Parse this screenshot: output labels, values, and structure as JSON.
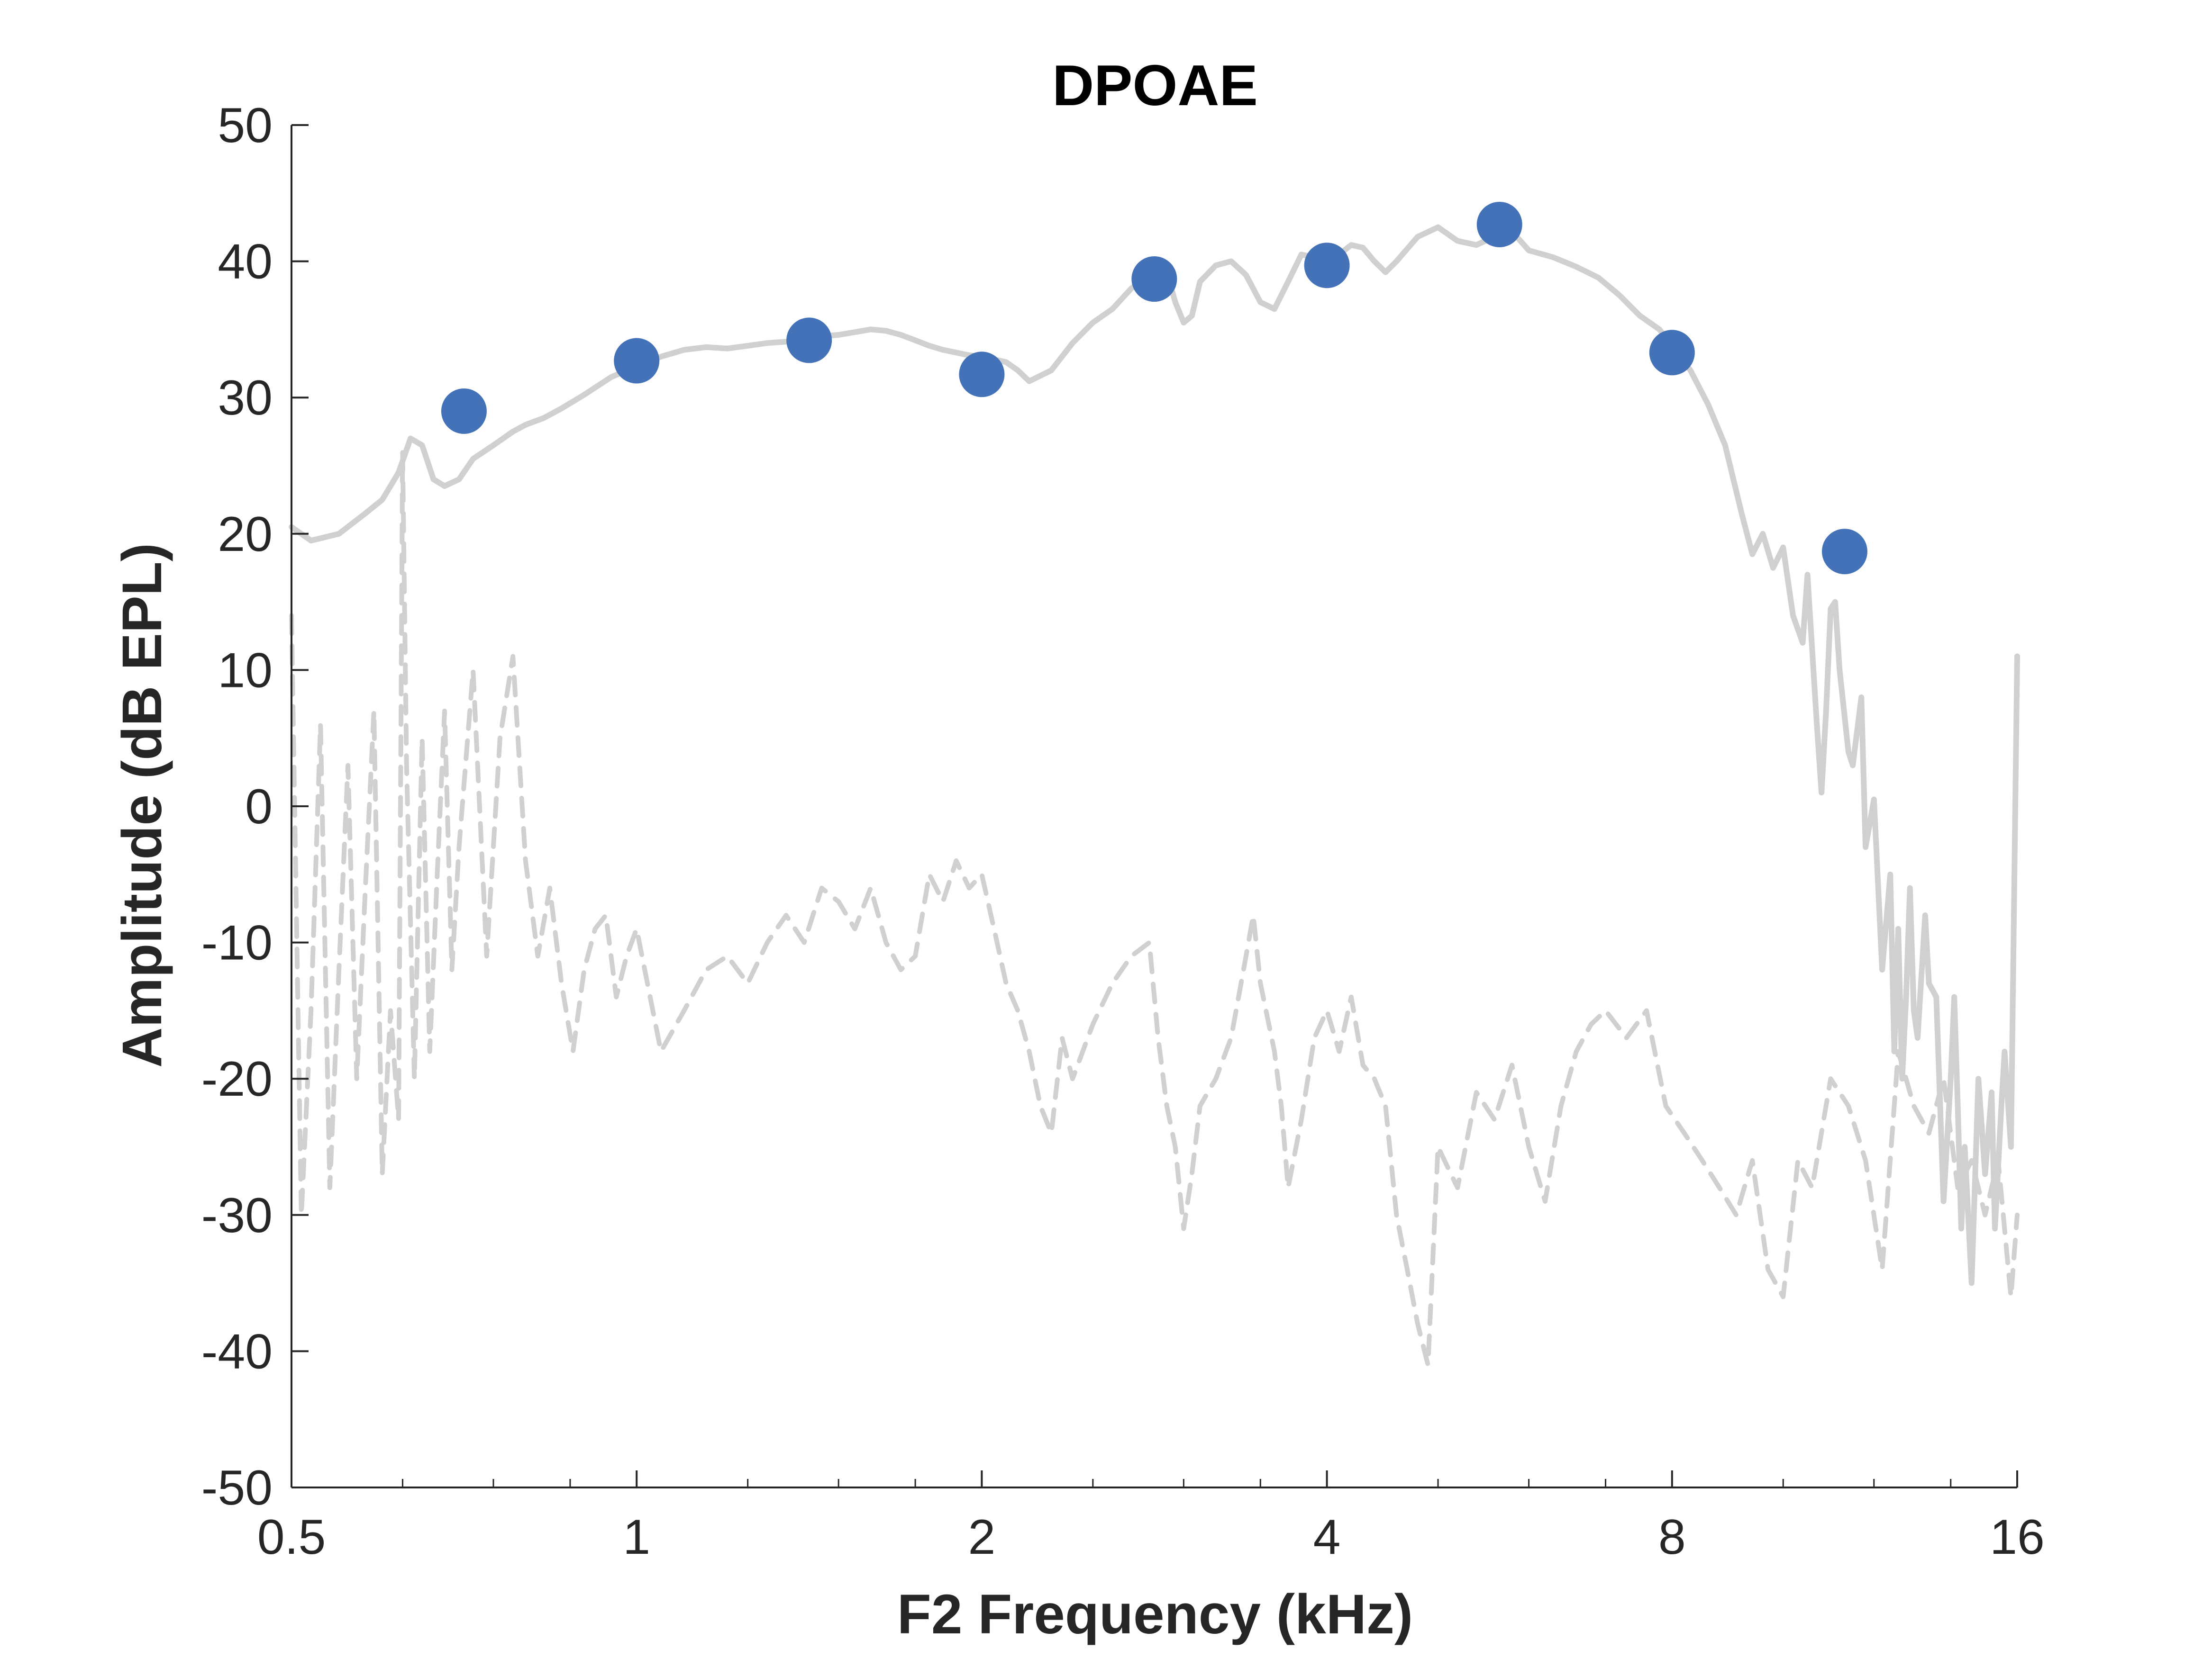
{
  "chart_data": {
    "type": "line",
    "title": "DPOAE",
    "xlabel": "F2 Frequency (kHz)",
    "ylabel": "Amplitude (dB EPL)",
    "xscale": "log2",
    "xlim": [
      0.5,
      16
    ],
    "ylim": [
      -50,
      50
    ],
    "xticks": [
      0.5,
      1,
      2,
      4,
      8,
      16
    ],
    "xtick_labels": [
      "0.5",
      "1",
      "2",
      "4",
      "8",
      "16"
    ],
    "yticks": [
      50,
      40,
      30,
      20,
      10,
      0,
      -10,
      -20,
      -30,
      -40,
      -50
    ],
    "ytick_labels": [
      "50",
      "40",
      "30",
      "20",
      "10",
      "0",
      "-10",
      "-20",
      "-30",
      "-40",
      "-50"
    ],
    "grid": false,
    "legend": "none",
    "colors": {
      "response": "#d0d0d0",
      "noise": "#d0d0d0",
      "points": "#4472b8",
      "axis": "#262626"
    },
    "series": [
      {
        "style": "solid",
        "x": [
          0.5,
          0.52,
          0.55,
          0.58,
          0.6,
          0.62,
          0.635,
          0.65,
          0.665,
          0.68,
          0.7,
          0.72,
          0.75,
          0.78,
          0.8,
          0.83,
          0.86,
          0.9,
          0.95,
          1.0,
          1.05,
          1.1,
          1.15,
          1.2,
          1.25,
          1.3,
          1.35,
          1.4,
          1.45,
          1.5,
          1.55,
          1.6,
          1.65,
          1.7,
          1.75,
          1.8,
          1.85,
          1.9,
          1.95,
          2.0,
          2.05,
          2.1,
          2.15,
          2.2,
          2.3,
          2.4,
          2.5,
          2.6,
          2.7,
          2.8,
          2.9,
          2.95,
          3.0,
          3.05,
          3.1,
          3.2,
          3.3,
          3.4,
          3.5,
          3.6,
          3.7,
          3.8,
          3.9,
          4.0,
          4.1,
          4.2,
          4.3,
          4.4,
          4.5,
          4.6,
          4.8,
          5.0,
          5.2,
          5.4,
          5.6,
          5.8,
          6.0,
          6.3,
          6.6,
          6.9,
          7.2,
          7.5,
          7.8,
          8.0,
          8.3,
          8.6,
          8.9,
          9.2,
          9.4,
          9.6,
          9.8,
          10.0,
          10.2,
          10.4,
          10.5,
          10.7,
          10.8,
          10.9,
          11.0,
          11.1,
          11.2,
          11.4,
          11.5,
          11.7,
          11.8,
          12.0,
          12.2,
          12.4,
          12.5,
          12.6,
          12.7,
          12.8,
          12.9,
          13.0,
          13.1,
          13.3,
          13.4,
          13.6,
          13.8,
          14.0,
          14.1,
          14.2,
          14.3,
          14.4,
          14.6,
          14.8,
          15.0,
          15.2,
          15.3,
          15.5,
          15.6,
          15.8,
          16.0
        ],
        "y": [
          20.5,
          19.5,
          20.0,
          21.5,
          22.5,
          24.5,
          27.0,
          26.5,
          24.0,
          23.5,
          24.0,
          25.5,
          26.5,
          27.5,
          28.0,
          28.5,
          29.2,
          30.2,
          31.5,
          32.3,
          33.0,
          33.5,
          33.7,
          33.6,
          33.8,
          34.0,
          34.1,
          34.3,
          34.5,
          34.6,
          34.8,
          35.0,
          34.9,
          34.6,
          34.2,
          33.8,
          33.5,
          33.3,
          33.1,
          33.0,
          32.8,
          32.6,
          32.0,
          31.2,
          32.0,
          34.0,
          35.5,
          36.5,
          38.0,
          39.0,
          39.2,
          37.0,
          35.5,
          36.0,
          38.5,
          39.7,
          40.0,
          39.0,
          37.0,
          36.5,
          38.5,
          40.5,
          40.3,
          40.0,
          40.5,
          41.2,
          41.0,
          40.0,
          39.2,
          40.0,
          41.8,
          42.5,
          41.5,
          41.2,
          41.8,
          42.2,
          40.8,
          40.3,
          39.6,
          38.8,
          37.5,
          36.0,
          35.0,
          33.8,
          32.0,
          29.5,
          26.5,
          21.5,
          18.5,
          20.0,
          17.5,
          19.0,
          14.0,
          12.0,
          17.0,
          6.0,
          1.0,
          7.0,
          14.5,
          15.0,
          10.0,
          4.0,
          3.0,
          8.0,
          -3.0,
          0.5,
          -12.0,
          -5.0,
          -18.0,
          -9.0,
          -20.0,
          -14.0,
          -6.0,
          -15.0,
          -17.0,
          -8.0,
          -13.0,
          -14.0,
          -29.0,
          -20.0,
          -14.0,
          -22.0,
          -31.0,
          -25.0,
          -35.0,
          -20.0,
          -27.0,
          -21.0,
          -31.0,
          -22.0,
          -18.0,
          -25.0,
          11.0
        ]
      },
      {
        "style": "dashed",
        "x": [
          0.5,
          0.51,
          0.52,
          0.53,
          0.54,
          0.55,
          0.56,
          0.57,
          0.58,
          0.59,
          0.6,
          0.61,
          0.62,
          0.625,
          0.63,
          0.64,
          0.65,
          0.66,
          0.67,
          0.68,
          0.69,
          0.7,
          0.72,
          0.74,
          0.76,
          0.78,
          0.8,
          0.82,
          0.84,
          0.86,
          0.88,
          0.9,
          0.92,
          0.94,
          0.96,
          0.98,
          1.0,
          1.05,
          1.1,
          1.15,
          1.2,
          1.25,
          1.3,
          1.35,
          1.4,
          1.45,
          1.5,
          1.55,
          1.6,
          1.65,
          1.7,
          1.75,
          1.8,
          1.85,
          1.9,
          1.95,
          2.0,
          2.05,
          2.1,
          2.15,
          2.2,
          2.25,
          2.3,
          2.35,
          2.4,
          2.5,
          2.6,
          2.7,
          2.8,
          2.85,
          2.9,
          2.95,
          3.0,
          3.05,
          3.1,
          3.2,
          3.3,
          3.4,
          3.45,
          3.5,
          3.6,
          3.65,
          3.7,
          3.8,
          3.9,
          4.0,
          4.1,
          4.2,
          4.3,
          4.4,
          4.5,
          4.6,
          4.7,
          4.8,
          4.9,
          5.0,
          5.2,
          5.4,
          5.6,
          5.8,
          6.0,
          6.2,
          6.4,
          6.6,
          6.8,
          7.0,
          7.3,
          7.6,
          7.9,
          8.2,
          8.5,
          8.8,
          9.1,
          9.4,
          9.7,
          10.0,
          10.3,
          10.6,
          11.0,
          11.4,
          11.8,
          12.2,
          12.6,
          13.0,
          13.4,
          13.8,
          14.2,
          14.6,
          15.0,
          15.4,
          15.8,
          16.0
        ],
        "y": [
          14.0,
          -30.0,
          -15.0,
          6.0,
          -28.0,
          -12.0,
          3.0,
          -20.0,
          -6.0,
          7.0,
          -27.0,
          -15.0,
          -23.0,
          26.0,
          3.0,
          -20.0,
          5.0,
          -18.0,
          -5.0,
          7.0,
          -12.0,
          -3.0,
          10.0,
          -11.0,
          5.0,
          11.0,
          -4.0,
          -11.0,
          -6.0,
          -13.0,
          -18.0,
          -12.0,
          -9.0,
          -8.0,
          -14.0,
          -11.0,
          -9.0,
          -18.0,
          -15.0,
          -12.0,
          -11.0,
          -13.0,
          -10.0,
          -8.0,
          -10.0,
          -6.0,
          -7.0,
          -9.0,
          -6.0,
          -10.0,
          -12.0,
          -11.0,
          -5.0,
          -7.0,
          -4.0,
          -6.0,
          -5.0,
          -9.0,
          -13.0,
          -15.0,
          -18.0,
          -22.0,
          -24.0,
          -17.0,
          -20.0,
          -16.0,
          -13.0,
          -11.0,
          -10.0,
          -17.0,
          -22.0,
          -25.0,
          -31.0,
          -27.0,
          -22.0,
          -20.0,
          -17.0,
          -11.0,
          -8.0,
          -13.0,
          -18.0,
          -22.0,
          -28.0,
          -23.0,
          -17.0,
          -15.0,
          -18.0,
          -14.0,
          -19.0,
          -20.0,
          -22.0,
          -30.0,
          -34.0,
          -38.0,
          -41.0,
          -25.0,
          -28.0,
          -21.0,
          -23.0,
          -19.0,
          -25.0,
          -29.0,
          -22.0,
          -18.0,
          -16.0,
          -15.0,
          -17.0,
          -15.0,
          -22.0,
          -24.0,
          -26.0,
          -28.0,
          -30.0,
          -26.0,
          -34.0,
          -36.0,
          -26.0,
          -28.0,
          -20.0,
          -22.0,
          -26.0,
          -34.0,
          -18.0,
          -22.0,
          -24.0,
          -20.0,
          -28.0,
          -26.0,
          -30.0,
          -26.0,
          -36.0,
          -30.0
        ]
      },
      {
        "style": "markers",
        "x": [
          0.707,
          1.0,
          1.414,
          2.0,
          2.828,
          4.0,
          5.657,
          8.0,
          11.314
        ],
        "y": [
          29.0,
          32.7,
          34.2,
          31.7,
          38.7,
          39.7,
          42.7,
          33.3,
          18.7
        ]
      }
    ]
  }
}
